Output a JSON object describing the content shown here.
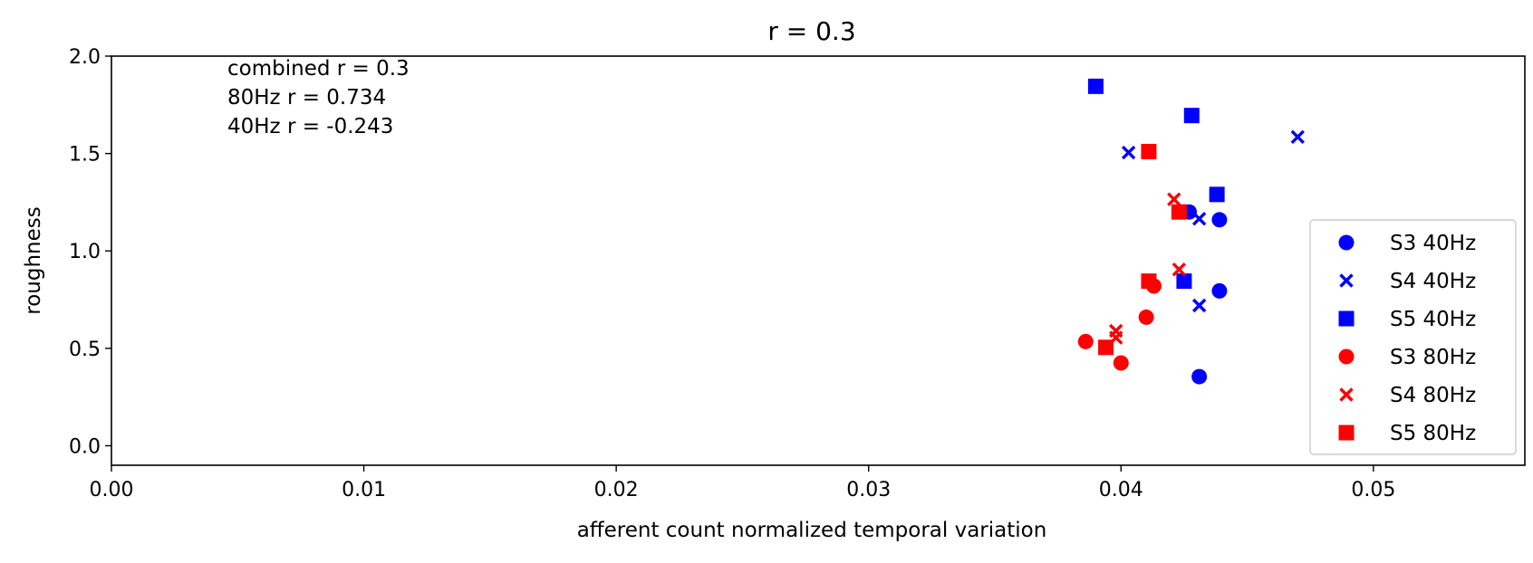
{
  "chart_data": {
    "type": "scatter",
    "title": "r = 0.3",
    "xlabel": "afferent count normalized temporal variation",
    "ylabel": "roughness",
    "xlim": [
      0.0,
      0.056
    ],
    "ylim": [
      -0.1,
      2.0
    ],
    "xticks": [
      0.0,
      0.01,
      0.02,
      0.03,
      0.04,
      0.05
    ],
    "xtick_labels": [
      "0.00",
      "0.01",
      "0.02",
      "0.03",
      "0.04",
      "0.05"
    ],
    "yticks": [
      0.0,
      0.5,
      1.0,
      1.5,
      2.0
    ],
    "ytick_labels": [
      "0.0",
      "0.5",
      "1.0",
      "1.5",
      "2.0"
    ],
    "grid": false,
    "legend_position": "lower-right",
    "annotations": [
      "combined r = 0.3",
      "80Hz r = 0.734",
      "40Hz r = -0.243"
    ],
    "series": [
      {
        "name": "S3 40Hz",
        "marker": "circle",
        "color": "#0000ff",
        "points": [
          [
            0.0427,
            1.2
          ],
          [
            0.0439,
            1.16
          ],
          [
            0.0439,
            0.795
          ],
          [
            0.0431,
            0.355
          ]
        ]
      },
      {
        "name": "S4 40Hz",
        "marker": "x",
        "color": "#0000ff",
        "points": [
          [
            0.047,
            1.585
          ],
          [
            0.0403,
            1.505
          ],
          [
            0.0431,
            1.165
          ],
          [
            0.0431,
            0.72
          ]
        ]
      },
      {
        "name": "S5 40Hz",
        "marker": "square",
        "color": "#0000ff",
        "points": [
          [
            0.039,
            1.845
          ],
          [
            0.0428,
            1.695
          ],
          [
            0.0438,
            1.29
          ],
          [
            0.0425,
            0.845
          ]
        ]
      },
      {
        "name": "S3 80Hz",
        "marker": "circle",
        "color": "#ff0000",
        "points": [
          [
            0.0413,
            0.82
          ],
          [
            0.041,
            0.66
          ],
          [
            0.0386,
            0.535
          ],
          [
            0.04,
            0.425
          ]
        ]
      },
      {
        "name": "S4 80Hz",
        "marker": "x",
        "color": "#ff0000",
        "points": [
          [
            0.0421,
            1.265
          ],
          [
            0.0423,
            0.905
          ],
          [
            0.0398,
            0.59
          ],
          [
            0.0398,
            0.555
          ]
        ]
      },
      {
        "name": "S5 80Hz",
        "marker": "square",
        "color": "#ff0000",
        "points": [
          [
            0.0411,
            1.51
          ],
          [
            0.0423,
            1.2
          ],
          [
            0.0411,
            0.845
          ],
          [
            0.0394,
            0.505
          ]
        ]
      }
    ]
  }
}
